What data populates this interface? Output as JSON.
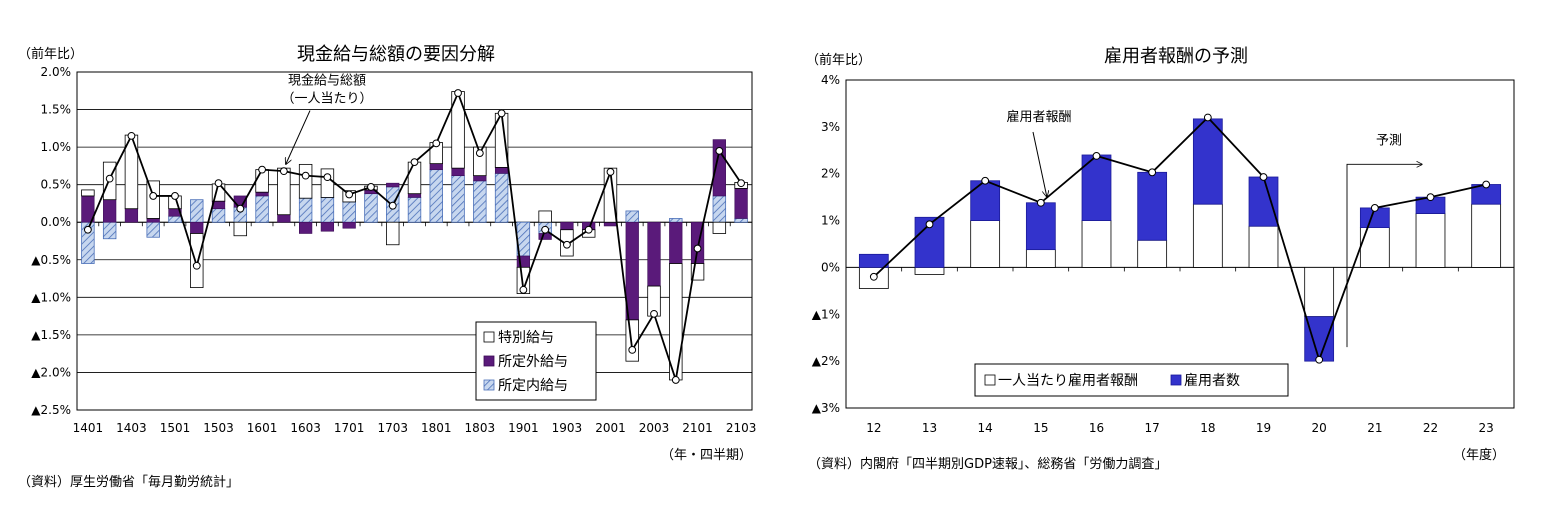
{
  "chart_data": [
    {
      "type": "bar",
      "subtype": "stacked-bar-with-line",
      "title": "現金給与総額の要因分解",
      "ylabel": "（前年比）",
      "xlabel": "（年・四半期）",
      "source": "（資料）厚生労働省「毎月勤労統計」",
      "ylim": [
        -2.5,
        2.0
      ],
      "yticks": [
        2.0,
        1.5,
        1.0,
        0.5,
        0.0,
        -0.5,
        -1.0,
        -1.5,
        -2.0,
        -2.5
      ],
      "ytick_labels": [
        "2.0%",
        "1.5%",
        "1.0%",
        "0.5%",
        "0.0%",
        "▲0.5%",
        "▲1.0%",
        "▲1.5%",
        "▲2.0%",
        "▲2.5%"
      ],
      "categories": [
        "1401",
        "1402",
        "1403",
        "1404",
        "1501",
        "1502",
        "1503",
        "1504",
        "1601",
        "1602",
        "1603",
        "1604",
        "1701",
        "1702",
        "1703",
        "1704",
        "1801",
        "1802",
        "1803",
        "1804",
        "1901",
        "1902",
        "1903",
        "1904",
        "2001",
        "2002",
        "2003",
        "2004",
        "2101",
        "2102",
        "2103"
      ],
      "xtick_labels": [
        "1401",
        "1403",
        "1501",
        "1503",
        "1601",
        "1603",
        "1701",
        "1703",
        "1801",
        "1803",
        "1901",
        "1903",
        "2001",
        "2003",
        "2101",
        "2103"
      ],
      "series": [
        {
          "name": "所定内給与",
          "values": [
            -0.55,
            -0.22,
            0.0,
            -0.2,
            0.08,
            0.3,
            0.18,
            0.2,
            0.35,
            0.0,
            0.32,
            0.33,
            0.27,
            0.38,
            0.47,
            0.33,
            0.7,
            0.62,
            0.55,
            0.65,
            -0.45,
            -0.15,
            0.0,
            0.0,
            0.0,
            0.15,
            0.0,
            0.05,
            0.0,
            0.35,
            0.05
          ]
        },
        {
          "name": "所定外給与",
          "values": [
            0.35,
            0.3,
            0.18,
            0.05,
            0.1,
            -0.15,
            0.1,
            0.15,
            0.05,
            0.1,
            -0.15,
            -0.12,
            -0.08,
            0.05,
            0.05,
            0.05,
            0.08,
            0.1,
            0.07,
            0.08,
            -0.15,
            -0.08,
            -0.1,
            -0.1,
            -0.05,
            -1.3,
            -0.85,
            -0.55,
            -0.55,
            0.75,
            0.4
          ]
        },
        {
          "name": "特別給与",
          "values": [
            0.08,
            0.5,
            0.98,
            0.5,
            0.17,
            -0.72,
            0.23,
            -0.18,
            0.3,
            0.62,
            0.45,
            0.38,
            0.15,
            0.05,
            -0.3,
            0.42,
            0.28,
            1.02,
            0.38,
            0.72,
            -0.35,
            0.15,
            -0.35,
            -0.1,
            0.72,
            -0.55,
            -0.4,
            -1.55,
            -0.22,
            -0.15,
            0.08
          ]
        },
        {
          "name": "現金給与総額（一人当たり）",
          "values": [
            -0.1,
            0.58,
            1.15,
            0.35,
            0.35,
            -0.58,
            0.52,
            0.18,
            0.7,
            0.68,
            0.62,
            0.6,
            0.37,
            0.47,
            0.22,
            0.8,
            1.05,
            1.72,
            0.92,
            1.45,
            -0.9,
            -0.1,
            -0.3,
            -0.1,
            0.67,
            -1.7,
            -1.22,
            -2.1,
            -0.35,
            0.95,
            0.52
          ]
        }
      ],
      "annotation": "現金給与総額（一人当たり）",
      "annotation_lines": [
        "現金給与総額",
        "（一人当たり）"
      ],
      "legend": [
        "特別給与",
        "所定外給与",
        "所定内給与"
      ],
      "legend_position": "bottom-right"
    },
    {
      "type": "bar",
      "subtype": "stacked-bar-with-line",
      "title": "雇用者報酬の予測",
      "ylabel": "（前年比）",
      "xlabel": "（年度）",
      "source": "（資料）内閣府「四半期別GDP速報」、総務省「労働力調査」",
      "ylim": [
        -3,
        4
      ],
      "yticks": [
        4,
        3,
        2,
        1,
        0,
        -1,
        -2,
        -3
      ],
      "ytick_labels": [
        "4%",
        "3%",
        "2%",
        "1%",
        "0%",
        "▲1%",
        "▲2%",
        "▲3%"
      ],
      "categories": [
        "12",
        "13",
        "14",
        "15",
        "16",
        "17",
        "18",
        "19",
        "20",
        "21",
        "22",
        "23"
      ],
      "series": [
        {
          "name": "一人当たり雇用者報酬",
          "values": [
            -0.45,
            -0.15,
            1.0,
            0.38,
            1.0,
            0.58,
            1.35,
            0.88,
            -1.05,
            0.85,
            1.15,
            1.35
          ]
        },
        {
          "name": "雇用者数",
          "values": [
            0.28,
            1.07,
            0.85,
            1.0,
            1.4,
            1.45,
            1.82,
            1.05,
            -0.95,
            0.42,
            0.35,
            0.42
          ]
        },
        {
          "name": "雇用者報酬",
          "values": [
            -0.2,
            0.92,
            1.85,
            1.38,
            2.38,
            2.03,
            3.2,
            1.93,
            -1.97,
            1.27,
            1.5,
            1.77
          ]
        }
      ],
      "annotation": "雇用者報酬",
      "forecast_label": "予測",
      "legend": [
        "一人当たり雇用者報酬",
        "雇用者数"
      ],
      "legend_position": "bottom-center"
    }
  ],
  "colors": {
    "purple": "#5a1a7a",
    "blue": "#3333cc",
    "hatch": "#4a6fb8",
    "hatch_bg": "#c7d7ef"
  }
}
